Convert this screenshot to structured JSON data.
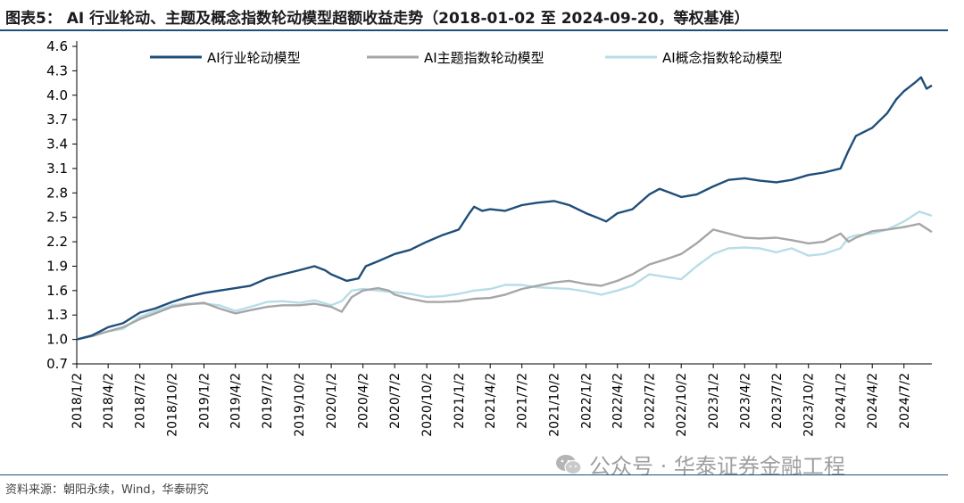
{
  "title": "图表5： AI 行业轮动、主题及概念指数轮动模型超额收益走势（2018-01-02 至 2024-09-20，等权基准）",
  "source": "资料来源：朝阳永续，Wind，华泰研究",
  "watermark": "公众号 · 华泰证券金融工程",
  "chart_data": {
    "type": "line",
    "ylim": [
      0.7,
      4.6
    ],
    "yticks": [
      0.7,
      1.0,
      1.3,
      1.6,
      1.9,
      2.2,
      2.5,
      2.8,
      3.1,
      3.4,
      3.7,
      4.0,
      4.3,
      4.6
    ],
    "xrange": [
      "2018/1/2",
      "2024/9/20"
    ],
    "xticks": [
      "2018/1/2",
      "2018/4/2",
      "2018/7/2",
      "2018/10/2",
      "2019/1/2",
      "2019/4/2",
      "2019/7/2",
      "2019/10/2",
      "2020/1/2",
      "2020/4/2",
      "2020/7/2",
      "2020/10/2",
      "2021/1/2",
      "2021/4/2",
      "2021/7/2",
      "2021/10/2",
      "2022/1/2",
      "2022/4/2",
      "2022/7/2",
      "2022/10/2",
      "2023/1/2",
      "2023/4/2",
      "2023/7/2",
      "2023/10/2",
      "2024/1/2",
      "2024/4/2",
      "2024/7/2"
    ],
    "legend_position": "top",
    "grid": false,
    "series": [
      {
        "name": "AI行业轮动模型",
        "color": "#1f4e79",
        "points": [
          [
            "2018/1/2",
            1.0
          ],
          [
            "2018/2/15",
            1.05
          ],
          [
            "2018/4/2",
            1.15
          ],
          [
            "2018/5/15",
            1.2
          ],
          [
            "2018/7/2",
            1.33
          ],
          [
            "2018/8/15",
            1.38
          ],
          [
            "2018/10/2",
            1.46
          ],
          [
            "2018/11/15",
            1.52
          ],
          [
            "2019/1/2",
            1.57
          ],
          [
            "2019/2/15",
            1.6
          ],
          [
            "2019/4/2",
            1.63
          ],
          [
            "2019/5/15",
            1.66
          ],
          [
            "2019/7/2",
            1.75
          ],
          [
            "2019/8/15",
            1.8
          ],
          [
            "2019/10/2",
            1.85
          ],
          [
            "2019/11/15",
            1.9
          ],
          [
            "2019/12/15",
            1.85
          ],
          [
            "2020/1/2",
            1.8
          ],
          [
            "2020/2/15",
            1.72
          ],
          [
            "2020/3/20",
            1.75
          ],
          [
            "2020/4/10",
            1.9
          ],
          [
            "2020/5/15",
            1.96
          ],
          [
            "2020/7/2",
            2.05
          ],
          [
            "2020/8/15",
            2.1
          ],
          [
            "2020/10/2",
            2.2
          ],
          [
            "2020/11/15",
            2.28
          ],
          [
            "2021/1/2",
            2.35
          ],
          [
            "2021/2/1",
            2.55
          ],
          [
            "2021/2/15",
            2.63
          ],
          [
            "2021/3/10",
            2.58
          ],
          [
            "2021/4/2",
            2.6
          ],
          [
            "2021/5/15",
            2.58
          ],
          [
            "2021/7/2",
            2.65
          ],
          [
            "2021/8/15",
            2.68
          ],
          [
            "2021/10/2",
            2.7
          ],
          [
            "2021/11/15",
            2.65
          ],
          [
            "2022/1/2",
            2.55
          ],
          [
            "2022/2/1",
            2.5
          ],
          [
            "2022/3/1",
            2.45
          ],
          [
            "2022/4/2",
            2.55
          ],
          [
            "2022/5/15",
            2.6
          ],
          [
            "2022/7/2",
            2.78
          ],
          [
            "2022/8/1",
            2.85
          ],
          [
            "2022/9/1",
            2.8
          ],
          [
            "2022/10/2",
            2.75
          ],
          [
            "2022/11/15",
            2.78
          ],
          [
            "2023/1/2",
            2.88
          ],
          [
            "2023/2/15",
            2.96
          ],
          [
            "2023/4/2",
            2.98
          ],
          [
            "2023/5/15",
            2.95
          ],
          [
            "2023/7/2",
            2.93
          ],
          [
            "2023/8/15",
            2.96
          ],
          [
            "2023/10/2",
            3.02
          ],
          [
            "2023/11/15",
            3.05
          ],
          [
            "2024/1/2",
            3.1
          ],
          [
            "2024/1/25",
            3.32
          ],
          [
            "2024/2/15",
            3.5
          ],
          [
            "2024/3/10",
            3.55
          ],
          [
            "2024/4/2",
            3.6
          ],
          [
            "2024/5/15",
            3.78
          ],
          [
            "2024/6/10",
            3.95
          ],
          [
            "2024/7/2",
            4.05
          ],
          [
            "2024/8/1",
            4.15
          ],
          [
            "2024/8/20",
            4.22
          ],
          [
            "2024/9/5",
            4.08
          ],
          [
            "2024/9/20",
            4.12
          ]
        ]
      },
      {
        "name": "AI主题指数轮动模型",
        "color": "#a6a6a6",
        "points": [
          [
            "2018/1/2",
            1.0
          ],
          [
            "2018/2/15",
            1.04
          ],
          [
            "2018/4/2",
            1.1
          ],
          [
            "2018/5/15",
            1.15
          ],
          [
            "2018/7/2",
            1.25
          ],
          [
            "2018/8/15",
            1.32
          ],
          [
            "2018/10/2",
            1.4
          ],
          [
            "2018/11/15",
            1.43
          ],
          [
            "2019/1/2",
            1.45
          ],
          [
            "2019/2/15",
            1.38
          ],
          [
            "2019/4/2",
            1.32
          ],
          [
            "2019/5/15",
            1.36
          ],
          [
            "2019/7/2",
            1.4
          ],
          [
            "2019/8/15",
            1.42
          ],
          [
            "2019/10/2",
            1.42
          ],
          [
            "2019/11/15",
            1.44
          ],
          [
            "2020/1/2",
            1.4
          ],
          [
            "2020/2/1",
            1.34
          ],
          [
            "2020/3/1",
            1.52
          ],
          [
            "2020/4/2",
            1.6
          ],
          [
            "2020/5/15",
            1.63
          ],
          [
            "2020/6/15",
            1.6
          ],
          [
            "2020/7/2",
            1.55
          ],
          [
            "2020/8/15",
            1.5
          ],
          [
            "2020/10/2",
            1.46
          ],
          [
            "2020/11/15",
            1.46
          ],
          [
            "2021/1/2",
            1.47
          ],
          [
            "2021/2/15",
            1.5
          ],
          [
            "2021/4/2",
            1.51
          ],
          [
            "2021/5/15",
            1.55
          ],
          [
            "2021/7/2",
            1.62
          ],
          [
            "2021/8/15",
            1.66
          ],
          [
            "2021/10/2",
            1.7
          ],
          [
            "2021/11/15",
            1.72
          ],
          [
            "2022/1/2",
            1.68
          ],
          [
            "2022/2/15",
            1.66
          ],
          [
            "2022/4/2",
            1.72
          ],
          [
            "2022/5/15",
            1.8
          ],
          [
            "2022/7/2",
            1.92
          ],
          [
            "2022/8/15",
            1.98
          ],
          [
            "2022/10/2",
            2.05
          ],
          [
            "2022/11/15",
            2.18
          ],
          [
            "2023/1/2",
            2.35
          ],
          [
            "2023/2/15",
            2.3
          ],
          [
            "2023/4/2",
            2.25
          ],
          [
            "2023/5/15",
            2.24
          ],
          [
            "2023/7/2",
            2.25
          ],
          [
            "2023/8/15",
            2.22
          ],
          [
            "2023/10/2",
            2.18
          ],
          [
            "2023/11/15",
            2.2
          ],
          [
            "2024/1/2",
            2.3
          ],
          [
            "2024/1/25",
            2.2
          ],
          [
            "2024/2/15",
            2.25
          ],
          [
            "2024/4/2",
            2.33
          ],
          [
            "2024/5/15",
            2.35
          ],
          [
            "2024/7/2",
            2.38
          ],
          [
            "2024/8/15",
            2.42
          ],
          [
            "2024/9/20",
            2.32
          ]
        ]
      },
      {
        "name": "AI概念指数轮动模型",
        "color": "#b7dde8",
        "points": [
          [
            "2018/1/2",
            1.0
          ],
          [
            "2018/2/15",
            1.05
          ],
          [
            "2018/4/2",
            1.1
          ],
          [
            "2018/5/15",
            1.13
          ],
          [
            "2018/7/2",
            1.28
          ],
          [
            "2018/8/15",
            1.35
          ],
          [
            "2018/10/2",
            1.42
          ],
          [
            "2018/11/15",
            1.44
          ],
          [
            "2019/1/2",
            1.44
          ],
          [
            "2019/2/15",
            1.42
          ],
          [
            "2019/4/2",
            1.35
          ],
          [
            "2019/5/15",
            1.4
          ],
          [
            "2019/7/2",
            1.46
          ],
          [
            "2019/8/15",
            1.47
          ],
          [
            "2019/10/2",
            1.45
          ],
          [
            "2019/11/15",
            1.48
          ],
          [
            "2020/1/2",
            1.42
          ],
          [
            "2020/2/1",
            1.47
          ],
          [
            "2020/3/1",
            1.6
          ],
          [
            "2020/4/2",
            1.62
          ],
          [
            "2020/5/15",
            1.6
          ],
          [
            "2020/7/2",
            1.58
          ],
          [
            "2020/8/15",
            1.56
          ],
          [
            "2020/10/2",
            1.52
          ],
          [
            "2020/11/15",
            1.53
          ],
          [
            "2021/1/2",
            1.56
          ],
          [
            "2021/2/15",
            1.6
          ],
          [
            "2021/4/2",
            1.62
          ],
          [
            "2021/5/15",
            1.67
          ],
          [
            "2021/7/2",
            1.67
          ],
          [
            "2021/8/15",
            1.64
          ],
          [
            "2021/10/2",
            1.63
          ],
          [
            "2021/11/15",
            1.62
          ],
          [
            "2022/1/2",
            1.59
          ],
          [
            "2022/2/15",
            1.55
          ],
          [
            "2022/4/2",
            1.6
          ],
          [
            "2022/5/15",
            1.66
          ],
          [
            "2022/7/2",
            1.8
          ],
          [
            "2022/8/15",
            1.77
          ],
          [
            "2022/10/2",
            1.74
          ],
          [
            "2022/11/15",
            1.9
          ],
          [
            "2023/1/2",
            2.05
          ],
          [
            "2023/2/15",
            2.12
          ],
          [
            "2023/4/2",
            2.13
          ],
          [
            "2023/5/15",
            2.12
          ],
          [
            "2023/7/2",
            2.07
          ],
          [
            "2023/8/15",
            2.12
          ],
          [
            "2023/10/2",
            2.03
          ],
          [
            "2023/11/15",
            2.05
          ],
          [
            "2024/1/2",
            2.12
          ],
          [
            "2024/1/25",
            2.25
          ],
          [
            "2024/2/15",
            2.28
          ],
          [
            "2024/4/2",
            2.3
          ],
          [
            "2024/5/15",
            2.35
          ],
          [
            "2024/7/2",
            2.45
          ],
          [
            "2024/8/15",
            2.57
          ],
          [
            "2024/9/20",
            2.52
          ]
        ]
      }
    ]
  }
}
